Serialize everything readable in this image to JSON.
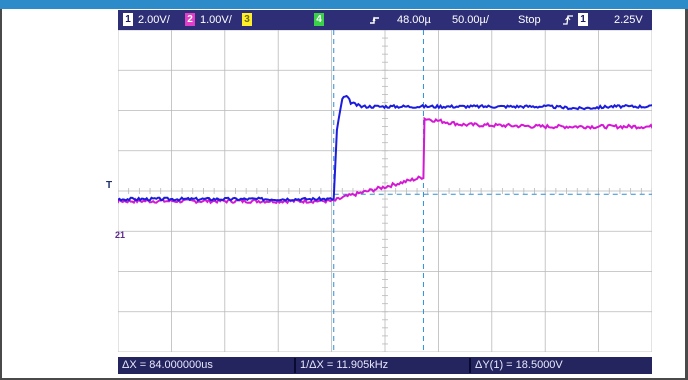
{
  "colors": {
    "frame_accent": "#2e8bc9",
    "status_bar_bg": "#2e2e76",
    "ch1_trace": "#1c1cdc",
    "ch2_trace": "#d419d4",
    "cursor_line": "#2f8fd8",
    "grid": "#b9b9b9"
  },
  "status_bar": {
    "ch1_label": "1",
    "ch1_scale": "2.00V/",
    "ch2_label": "2",
    "ch2_scale": "1.00V/",
    "ch3_label": "3",
    "ch4_label": "4",
    "time_delay": "48.00µ",
    "time_scale": "50.00µ/",
    "run_state": "Stop",
    "trigger_slope_icon": "rising-edge-icon",
    "trigger_source": "1",
    "trigger_level": "2.25V"
  },
  "measurements": {
    "delta_x": "ΔX = 84.000000us",
    "inv_delta_x": "1/ΔX = 11.905kHz",
    "delta_y": "ΔY(1) = 18.5000V"
  },
  "markers": {
    "trigger_level_icon": "trigger-level-icon",
    "trigger_level_text": "T",
    "ground_marker_text": "21"
  },
  "traces": {
    "ch1": {
      "name": "1",
      "t_us": [
        -250,
        0,
        3,
        8,
        12,
        16,
        20,
        26,
        40,
        80,
        100,
        200,
        230,
        260,
        300
      ],
      "v_div": [
        -0.2,
        -0.2,
        1.5,
        2.3,
        2.35,
        2.2,
        2.15,
        2.1,
        2.1,
        2.1,
        2.1,
        2.1,
        2.05,
        2.1,
        2.1
      ]
    },
    "ch2": {
      "name": "2",
      "t_us": [
        -250,
        0,
        10,
        40,
        84,
        85,
        120,
        200,
        300
      ],
      "v_div": [
        -0.25,
        -0.25,
        -0.15,
        0.05,
        0.35,
        1.8,
        1.65,
        1.6,
        1.6
      ]
    }
  }
}
